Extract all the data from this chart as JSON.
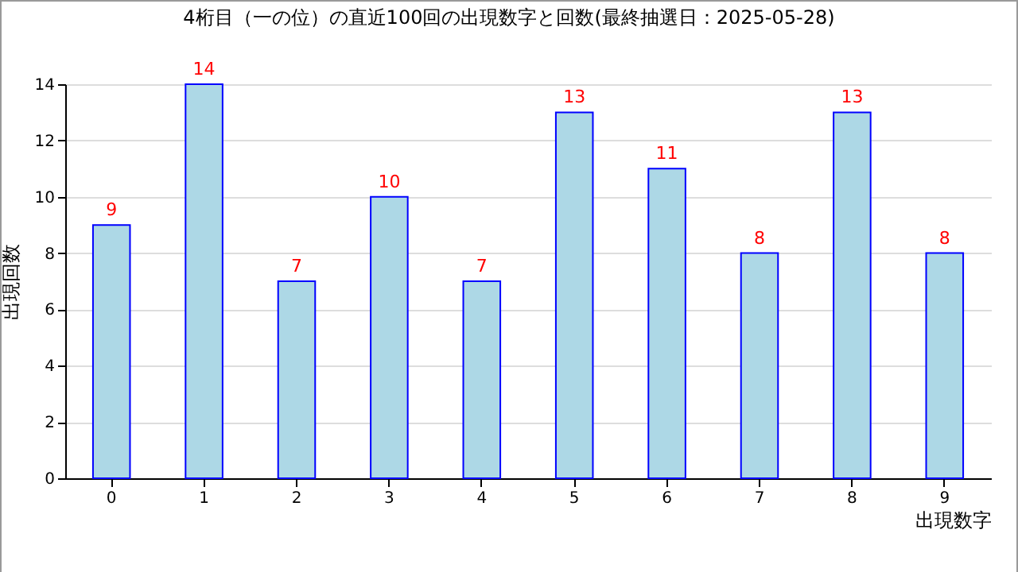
{
  "chart_data": {
    "type": "bar",
    "title": "4桁目（一の位）の直近100回の出現数字と回数(最終抽選日：2025-05-28)",
    "xlabel": "出現数字",
    "ylabel": "出現回数",
    "categories": [
      "0",
      "1",
      "2",
      "3",
      "4",
      "5",
      "6",
      "7",
      "8",
      "9"
    ],
    "values": [
      9,
      14,
      7,
      10,
      7,
      13,
      11,
      8,
      13,
      8
    ],
    "color": "#add8e6",
    "ylim": [
      0,
      14
    ],
    "yticks": [
      0,
      2,
      4,
      6,
      8,
      10,
      12,
      14
    ],
    "grid": "y",
    "data_labels": true
  }
}
